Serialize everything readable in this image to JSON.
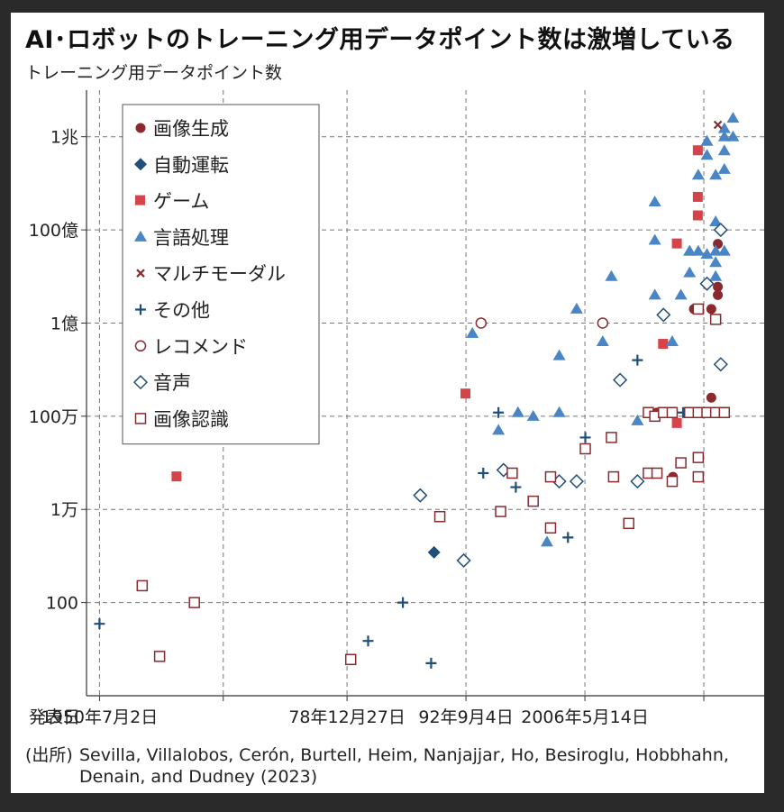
{
  "title": "AI･ロボットのトレーニング用データポイント数は激増している",
  "subtitle": "トレーニング用データポイント数",
  "source": {
    "label": "(出所)",
    "text": "Sevilla, Villalobos, Cerón, Burtell, Heim, Nanjajjar, Ho, Besiroglu, Hobbhahn, Denain, and Dudney (2023)"
  },
  "chart_data": {
    "type": "scatter",
    "title": "AI･ロボットのトレーニング用データポイント数は激増している",
    "ylabel": "トレーニング用データポイント数",
    "xlabel": "発表日",
    "x_axis_label": "発表日",
    "y_scale": "log",
    "ylim": [
      1,
      10000000000000
    ],
    "xlim": [
      "1949-01-01",
      "2027-01-01"
    ],
    "grid": true,
    "legend_position": "top-left",
    "x_ticks": [
      {
        "date": "1950-07-02",
        "label": "1950年7月2日"
      },
      {
        "date": "1964-09-28",
        "label": ""
      },
      {
        "date": "1978-12-27",
        "label": "78年12月27日"
      },
      {
        "date": "1992-09-04",
        "label": "92年9月4日"
      },
      {
        "date": "2006-05-14",
        "label": "2006年5月14日"
      },
      {
        "date": "2020-01-21",
        "label": ""
      }
    ],
    "y_ticks": [
      {
        "value": 100,
        "label": "100"
      },
      {
        "value": 10000,
        "label": "1万"
      },
      {
        "value": 1000000,
        "label": "100万"
      },
      {
        "value": 100000000,
        "label": "1億"
      },
      {
        "value": 10000000000,
        "label": "100億"
      },
      {
        "value": 1000000000000,
        "label": "1兆"
      }
    ],
    "series": [
      {
        "name": "画像生成",
        "marker": "circle-filled",
        "color": "#8b2a2e",
        "points": [
          {
            "x": "2014-09-01",
            "y": 1200000
          },
          {
            "x": "2016-07-01",
            "y": 50000
          },
          {
            "x": "2018-12-01",
            "y": 200000000
          },
          {
            "x": "2020-12-01",
            "y": 2500000
          },
          {
            "x": "2020-12-01",
            "y": 200000000
          },
          {
            "x": "2021-09-01",
            "y": 400000000
          },
          {
            "x": "2021-09-01",
            "y": 600000000
          },
          {
            "x": "2021-09-01",
            "y": 5000000000
          }
        ]
      },
      {
        "name": "自動運転",
        "marker": "diamond-filled",
        "color": "#1f4e79",
        "points": [
          {
            "x": "1989-01-01",
            "y": 1200
          }
        ]
      },
      {
        "name": "ゲーム",
        "marker": "square-filled",
        "color": "#d6434b",
        "points": [
          {
            "x": "1959-06-01",
            "y": 50000
          },
          {
            "x": "1992-09-01",
            "y": 3000000
          },
          {
            "x": "2015-06-01",
            "y": 35000000
          },
          {
            "x": "2017-01-01",
            "y": 700000
          },
          {
            "x": "2017-01-01",
            "y": 5000000000
          },
          {
            "x": "2019-06-01",
            "y": 20000000000
          },
          {
            "x": "2019-06-01",
            "y": 50000000000
          },
          {
            "x": "2019-06-01",
            "y": 500000000000
          }
        ]
      },
      {
        "name": "言語処理",
        "marker": "triangle-filled",
        "color": "#4a86c5",
        "points": [
          {
            "x": "1993-06-01",
            "y": 60000000
          },
          {
            "x": "1996-06-01",
            "y": 500000
          },
          {
            "x": "1998-09-01",
            "y": 1200000
          },
          {
            "x": "2000-06-01",
            "y": 1000000
          },
          {
            "x": "2002-01-01",
            "y": 2000
          },
          {
            "x": "2003-06-01",
            "y": 1200000
          },
          {
            "x": "2003-06-01",
            "y": 20000000
          },
          {
            "x": "2005-06-01",
            "y": 200000000
          },
          {
            "x": "2008-06-01",
            "y": 40000000
          },
          {
            "x": "2009-06-01",
            "y": 1000000000
          },
          {
            "x": "2012-06-01",
            "y": 800000
          },
          {
            "x": "2014-06-01",
            "y": 400000000
          },
          {
            "x": "2014-06-01",
            "y": 6000000000
          },
          {
            "x": "2014-06-01",
            "y": 40000000000
          },
          {
            "x": "2016-06-01",
            "y": 40000000
          },
          {
            "x": "2017-06-01",
            "y": 400000000
          },
          {
            "x": "2018-06-01",
            "y": 1200000000
          },
          {
            "x": "2018-06-01",
            "y": 3500000000
          },
          {
            "x": "2018-06-01",
            "y": 3500000000
          },
          {
            "x": "2019-06-01",
            "y": 150000000000
          },
          {
            "x": "2019-06-01",
            "y": 3500000000
          },
          {
            "x": "2020-06-01",
            "y": 3000000000
          },
          {
            "x": "2020-06-01",
            "y": 400000000000
          },
          {
            "x": "2021-06-01",
            "y": 1000000000
          },
          {
            "x": "2021-06-01",
            "y": 2000000000
          },
          {
            "x": "2021-06-01",
            "y": 15000000000
          },
          {
            "x": "2021-06-01",
            "y": 150000000000
          },
          {
            "x": "2021-06-01",
            "y": 3500000000
          },
          {
            "x": "2022-06-01",
            "y": 3500000000
          },
          {
            "x": "2022-06-01",
            "y": 200000000000
          },
          {
            "x": "2022-06-01",
            "y": 500000000000
          },
          {
            "x": "2022-06-01",
            "y": 1000000000000
          },
          {
            "x": "2022-06-01",
            "y": 1500000000000
          },
          {
            "x": "2023-06-01",
            "y": 1000000000000
          },
          {
            "x": "2023-06-01",
            "y": 2500000000000
          },
          {
            "x": "2020-06-01",
            "y": 800000000000
          }
        ]
      },
      {
        "name": "マルチモーダル",
        "marker": "x",
        "color": "#8b2a2e",
        "points": [
          {
            "x": "2021-09-01",
            "y": 1800000000000
          }
        ]
      },
      {
        "name": "その他",
        "marker": "plus",
        "color": "#1f4e79",
        "points": [
          {
            "x": "1950-07-01",
            "y": 35
          },
          {
            "x": "1981-06-01",
            "y": 15
          },
          {
            "x": "1985-06-01",
            "y": 100
          },
          {
            "x": "1988-09-01",
            "y": 5
          },
          {
            "x": "1994-09-01",
            "y": 60000
          },
          {
            "x": "1996-06-01",
            "y": 1200000
          },
          {
            "x": "1998-06-01",
            "y": 30000
          },
          {
            "x": "2004-06-01",
            "y": 2500
          },
          {
            "x": "2006-06-01",
            "y": 350000
          },
          {
            "x": "2012-06-01",
            "y": 16000000
          },
          {
            "x": "2017-09-01",
            "y": 1200000
          }
        ]
      },
      {
        "name": "レコメンド",
        "marker": "circle-open",
        "color": "#8b2a2e",
        "points": [
          {
            "x": "1994-06-01",
            "y": 100000000
          },
          {
            "x": "2008-06-01",
            "y": 100000000
          }
        ]
      },
      {
        "name": "音声",
        "marker": "diamond-open",
        "color": "#1f4e79",
        "points": [
          {
            "x": "1987-06-01",
            "y": 20000
          },
          {
            "x": "1992-06-01",
            "y": 800
          },
          {
            "x": "1997-01-01",
            "y": 70000
          },
          {
            "x": "2003-06-01",
            "y": 40000
          },
          {
            "x": "2005-06-01",
            "y": 40000
          },
          {
            "x": "2010-06-01",
            "y": 6000000
          },
          {
            "x": "2012-06-01",
            "y": 40000
          },
          {
            "x": "2015-06-01",
            "y": 150000000
          },
          {
            "x": "2020-06-01",
            "y": 700000000
          },
          {
            "x": "2022-01-01",
            "y": 10000000000
          },
          {
            "x": "2022-01-01",
            "y": 13000000
          }
        ]
      },
      {
        "name": "画像認識",
        "marker": "square-open",
        "color": "#8b2a2e",
        "points": [
          {
            "x": "1955-06-01",
            "y": 230
          },
          {
            "x": "1957-06-01",
            "y": 7
          },
          {
            "x": "1961-06-01",
            "y": 100
          },
          {
            "x": "1979-06-01",
            "y": 6
          },
          {
            "x": "1989-09-01",
            "y": 7000
          },
          {
            "x": "1996-09-01",
            "y": 9000
          },
          {
            "x": "1998-01-01",
            "y": 60000
          },
          {
            "x": "2000-06-01",
            "y": 15000
          },
          {
            "x": "2002-06-01",
            "y": 4000
          },
          {
            "x": "2002-06-01",
            "y": 50000
          },
          {
            "x": "2006-06-01",
            "y": 200000
          },
          {
            "x": "2009-09-01",
            "y": 50000
          },
          {
            "x": "2009-06-01",
            "y": 350000
          },
          {
            "x": "2011-06-01",
            "y": 5000
          },
          {
            "x": "2013-09-01",
            "y": 60000
          },
          {
            "x": "2014-09-01",
            "y": 60000
          },
          {
            "x": "2013-09-01",
            "y": 1200000
          },
          {
            "x": "2014-06-01",
            "y": 1000000
          },
          {
            "x": "2015-06-01",
            "y": 1200000
          },
          {
            "x": "2016-06-01",
            "y": 1200000
          },
          {
            "x": "2016-06-01",
            "y": 40000
          },
          {
            "x": "2017-06-01",
            "y": 100000
          },
          {
            "x": "2018-06-01",
            "y": 1200000
          },
          {
            "x": "2019-06-01",
            "y": 1200000
          },
          {
            "x": "2019-06-01",
            "y": 130000
          },
          {
            "x": "2019-06-01",
            "y": 50000
          },
          {
            "x": "2019-06-01",
            "y": 200000000
          },
          {
            "x": "2020-06-01",
            "y": 1200000
          },
          {
            "x": "2021-06-01",
            "y": 1200000
          },
          {
            "x": "2021-06-01",
            "y": 120000000
          },
          {
            "x": "2022-06-01",
            "y": 1200000
          }
        ]
      }
    ]
  }
}
